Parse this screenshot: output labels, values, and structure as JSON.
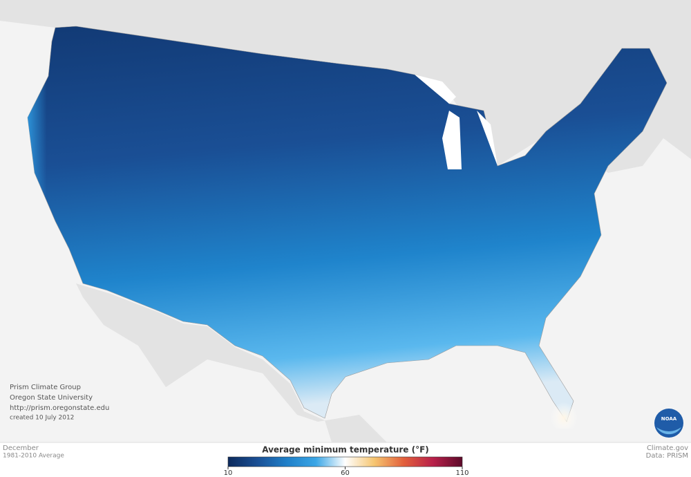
{
  "credits": [
    "Prism Climate Group",
    "Oregon State University",
    "http://prism.oregonstate.edu",
    "created 10 July 2012"
  ],
  "footer_left": {
    "title": "December",
    "subtitle": "1981-2010 Average"
  },
  "footer_right": {
    "source": "Climate.gov",
    "data": "Data: PRISM"
  },
  "legend": {
    "title": "Average minimum temperature (°F)",
    "range": [
      10,
      110
    ],
    "ticks": [
      10,
      60,
      110
    ],
    "colors": [
      "#0c2a5c",
      "#1a4f95",
      "#1f7fc8",
      "#3aa6e6",
      "#ffffff",
      "#f6c570",
      "#e2603c",
      "#b8204a",
      "#5c0a2a"
    ]
  },
  "logo": "NOAA"
}
